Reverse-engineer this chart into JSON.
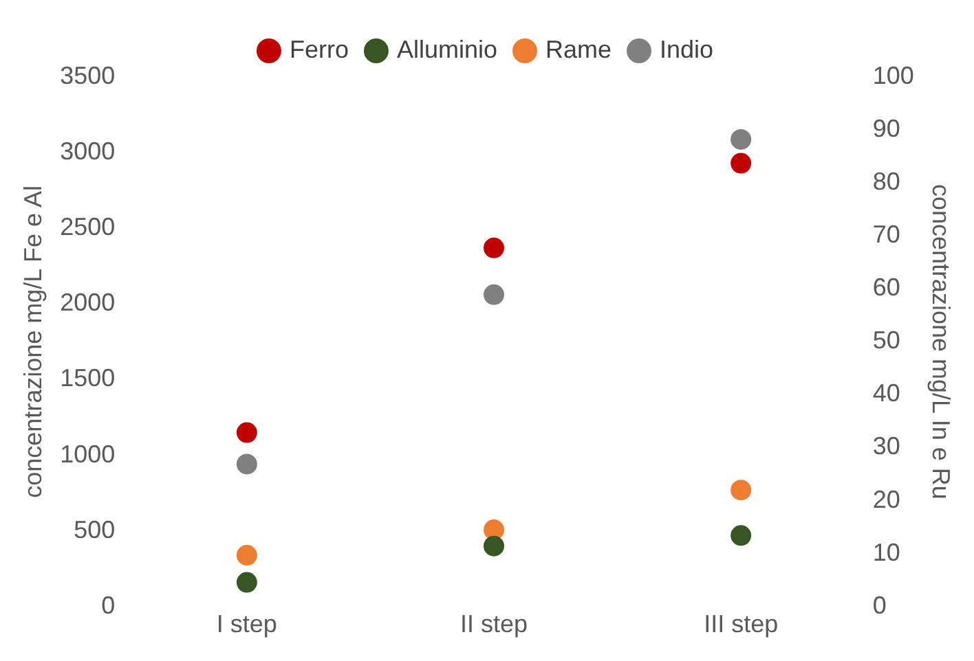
{
  "chart_data": {
    "type": "scatter",
    "categories": [
      "I step",
      "II step",
      "III step"
    ],
    "ylabel": "concentrazione mg/L Fe e Al",
    "y2label": "concentrazione mg/L In e Ru",
    "ylim": [
      0,
      3500
    ],
    "yticks": [
      0,
      500,
      1000,
      1500,
      2000,
      2500,
      3000,
      3500
    ],
    "y2lim": [
      0,
      100
    ],
    "y2ticks": [
      0,
      10,
      20,
      30,
      40,
      50,
      60,
      70,
      80,
      90,
      100
    ],
    "grid": false,
    "legend": "top",
    "marker": "circle",
    "series": [
      {
        "name": "Ferro",
        "color": "#c00000",
        "values": [
          1150,
          2370,
          2930
        ]
      },
      {
        "name": "Alluminio",
        "color": "#375623",
        "values": [
          160,
          400,
          470
        ]
      },
      {
        "name": "Rame",
        "color": "#ed7d31",
        "axis": "y2",
        "values": [
          9.7,
          14.5,
          22
        ]
      },
      {
        "name": "Indio",
        "color": "#808080",
        "axis": "y2",
        "values": [
          26.9,
          58.9,
          88.2
        ]
      }
    ]
  }
}
